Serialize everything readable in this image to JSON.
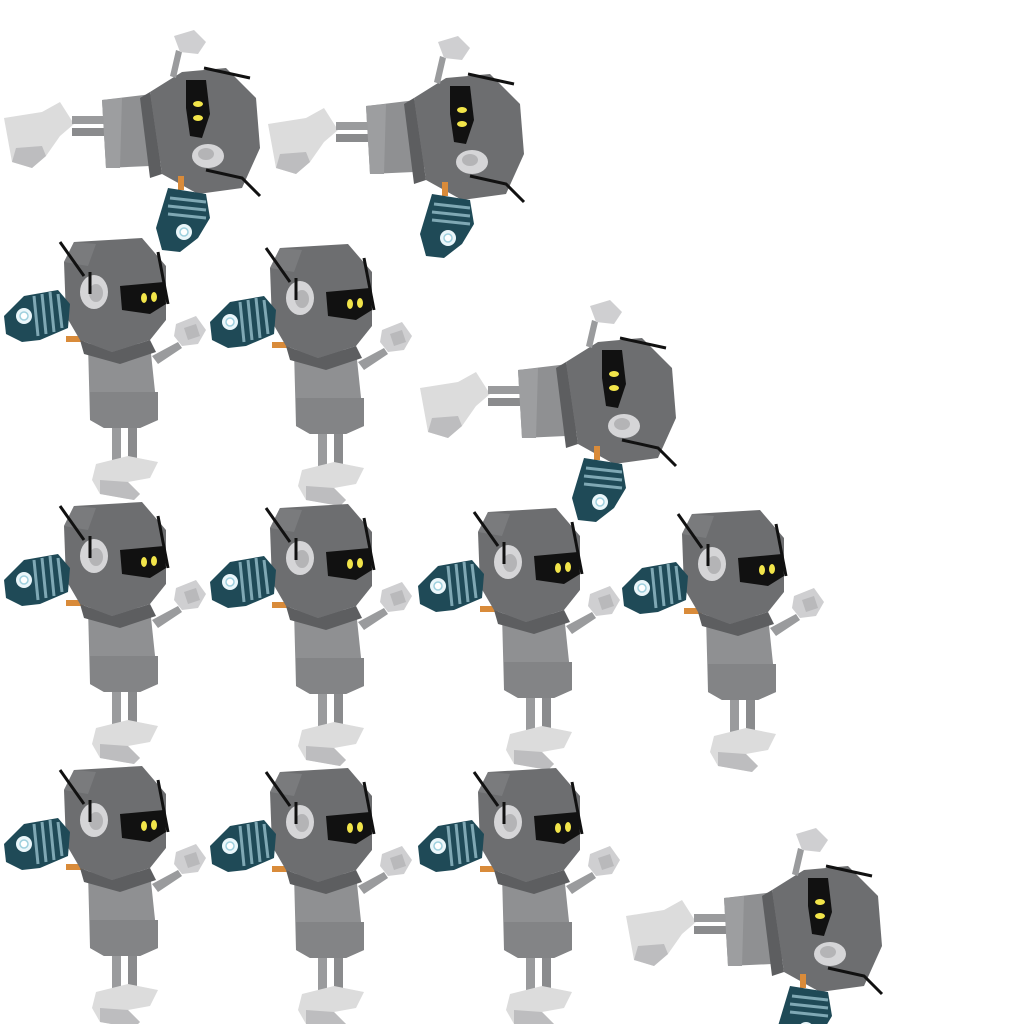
{
  "sprite_sheet": {
    "rows": [
      {
        "frames": [
          "rotated",
          "rotated"
        ]
      },
      {
        "frames": [
          "upright",
          "upright",
          "rotated"
        ]
      },
      {
        "frames": [
          "upright",
          "upright",
          "upright",
          "upright"
        ]
      },
      {
        "frames": [
          "upright",
          "upright",
          "upright",
          "rotated"
        ]
      }
    ]
  },
  "colors": {
    "background": "#ffffff",
    "body": "#8f9092",
    "hood": "#6d6e70",
    "hood_dark": "#5d5e60",
    "face": "#111111",
    "eyes": "#f2e54a",
    "ear": "#d5d5d7",
    "boot": "#dcdcdc",
    "boot_shade": "#bdbdbf",
    "gauntlet": "#1f4a57",
    "gauntlet_ridges": "#7fa8b4",
    "gauntlet_core": "#eaf6fa",
    "wrist": "#d98b3a",
    "antenna": "#111111"
  },
  "icons": {
    "character": "hooded-robot-sprite",
    "weapon": "energy-gauntlet-icon"
  }
}
